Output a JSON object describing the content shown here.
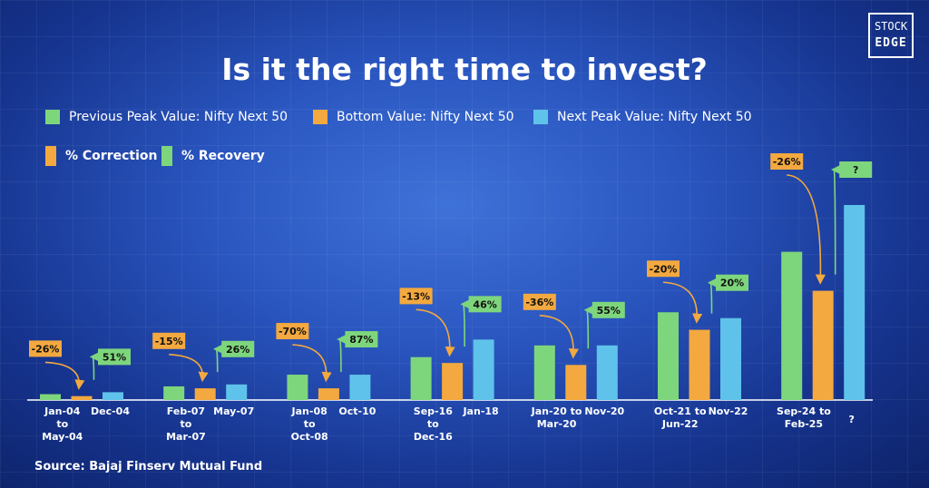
{
  "logo": {
    "line1": "STOCK",
    "line2": "EDGE"
  },
  "title": "Is it the right time to invest?",
  "legend": {
    "previous_peak": "Previous Peak Value: Nifty Next 50",
    "bottom": "Bottom Value: Nifty Next 50",
    "next_peak": "Next Peak Value: Nifty Next 50",
    "correction": "% Correction",
    "recovery": "% Recovery"
  },
  "colors": {
    "previous_peak": "#7ed67c",
    "bottom": "#f3a93f",
    "next_peak": "#5fc2ea",
    "correction_tag": "#f3a93f",
    "recovery_tag": "#7ed67c"
  },
  "chart_data": {
    "type": "bar",
    "title": "Is it the right time to invest?",
    "ylabel": "",
    "xlabel": "",
    "y_axis_visible": false,
    "grid": false,
    "ylim": [
      0,
      100
    ],
    "series": [
      {
        "name": "Previous Peak Value: Nifty Next 50",
        "values": [
          3,
          7,
          13,
          22,
          28,
          45,
          76
        ]
      },
      {
        "name": "Bottom Value: Nifty Next 50",
        "values": [
          2,
          6,
          6,
          19,
          18,
          36,
          56
        ]
      },
      {
        "name": "Next Peak Value: Nifty Next 50",
        "values": [
          4,
          8,
          13,
          31,
          28,
          42,
          100
        ]
      }
    ],
    "groups": [
      {
        "period_label": [
          "Jan-04",
          "to",
          "May-04"
        ],
        "peak_label": [
          "Dec-04"
        ],
        "correction": "-26%",
        "recovery": "51%"
      },
      {
        "period_label": [
          "Feb-07",
          "to",
          "Mar-07"
        ],
        "peak_label": [
          "May-07"
        ],
        "correction": "-15%",
        "recovery": "26%"
      },
      {
        "period_label": [
          "Jan-08",
          "to",
          "Oct-08"
        ],
        "peak_label": [
          "Oct-10"
        ],
        "correction": "-70%",
        "recovery": "87%"
      },
      {
        "period_label": [
          "Sep-16",
          "to",
          "Dec-16"
        ],
        "peak_label": [
          "Jan-18"
        ],
        "correction": "-13%",
        "recovery": "46%"
      },
      {
        "period_label": [
          "Jan-20 to",
          "Mar-20"
        ],
        "peak_label": [
          "Nov-20"
        ],
        "correction": "-36%",
        "recovery": "55%"
      },
      {
        "period_label": [
          "Oct-21 to",
          "Jun-22"
        ],
        "peak_label": [
          "Nov-22"
        ],
        "correction": "-20%",
        "recovery": "20%"
      },
      {
        "period_label": [
          "Sep-24 to",
          "Feb-25"
        ],
        "peak_label": [
          "?"
        ],
        "correction": "-26%",
        "recovery": "?"
      }
    ]
  },
  "source": "Source: Bajaj Finserv Mutual Fund"
}
